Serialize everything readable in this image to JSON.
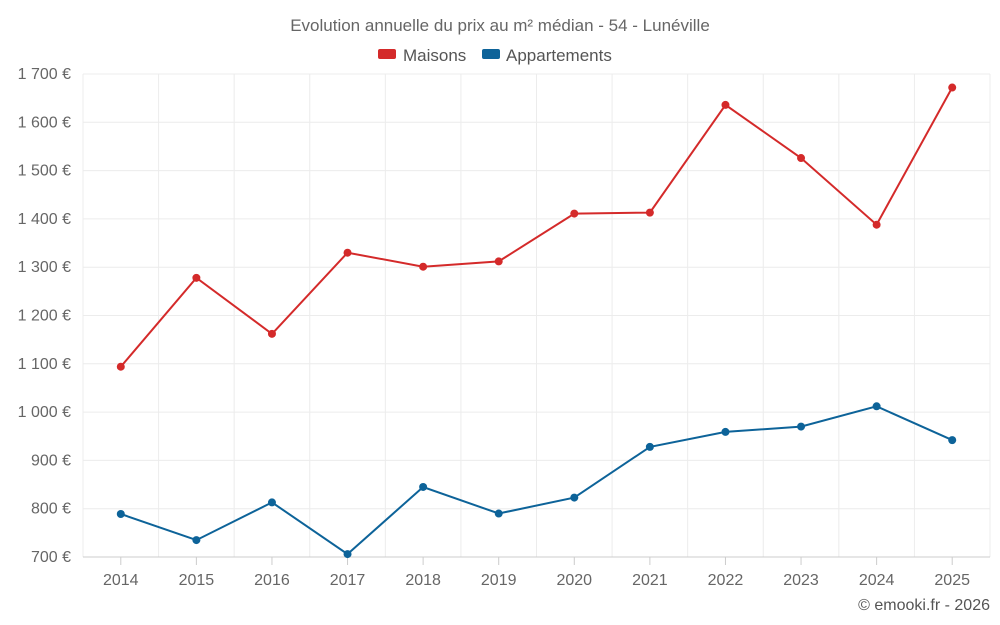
{
  "chart_data": {
    "type": "line",
    "title": "Evolution annuelle du prix au m² médian - 54 - Lunéville",
    "categories": [
      "2014",
      "2015",
      "2016",
      "2017",
      "2018",
      "2019",
      "2020",
      "2021",
      "2022",
      "2023",
      "2024",
      "2025"
    ],
    "series": [
      {
        "name": "Maisons",
        "color": "#d42a2a",
        "values": [
          1094,
          1278,
          1162,
          1330,
          1301,
          1312,
          1411,
          1413,
          1636,
          1526,
          1388,
          1672
        ]
      },
      {
        "name": "Appartements",
        "color": "#0d6399",
        "values": [
          789,
          735,
          813,
          706,
          845,
          790,
          823,
          928,
          959,
          970,
          1012,
          942
        ]
      }
    ],
    "ylim": [
      700,
      1700
    ],
    "yticks": [
      700,
      800,
      900,
      1000,
      1100,
      1200,
      1300,
      1400,
      1500,
      1600,
      1700
    ],
    "ytick_labels": [
      "700 €",
      "800 €",
      "900 €",
      "1 000 €",
      "1 100 €",
      "1 200 €",
      "1 300 €",
      "1 400 €",
      "1 500 €",
      "1 600 €",
      "1 700 €"
    ],
    "xlabel": "",
    "ylabel": "",
    "grid": true,
    "legend_position": "top-center",
    "credit": "© emooki.fr - 2026"
  }
}
